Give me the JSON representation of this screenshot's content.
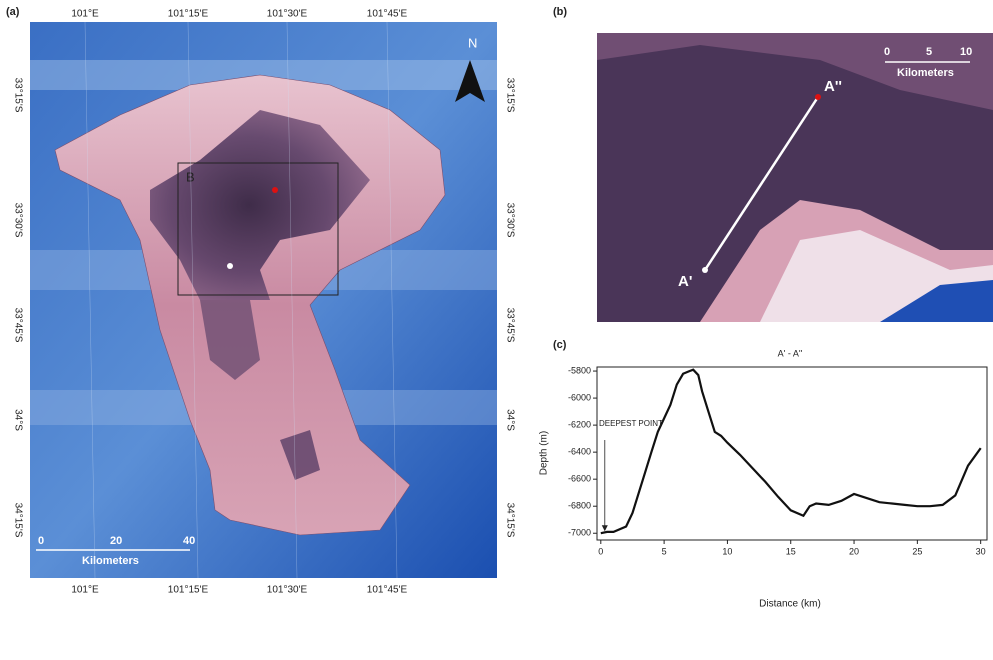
{
  "map_a": {
    "panel_label": "(a)",
    "lon_labels": [
      "101°E",
      "101°15'E",
      "101°30'E",
      "101°45'E"
    ],
    "lat_labels": [
      "33°15'S",
      "33°30'S",
      "33°45'S",
      "34°S",
      "34°15'S"
    ],
    "box_label": "B",
    "north": "N",
    "scale": [
      "0",
      "20",
      "40"
    ],
    "scale_unit": "Kilometers"
  },
  "map_b": {
    "panel_label": "(b)",
    "scale": [
      "0",
      "5",
      "10"
    ],
    "scale_unit": "Kilometers",
    "start": "A'",
    "end": "A''"
  },
  "chart_data": {
    "type": "line",
    "panel_label": "(c)",
    "title": "A' - A''",
    "x_label": "Distance (km)",
    "y_label": "Depth (m)",
    "annotation": "DEEPEST POINT",
    "x": [
      0,
      0.5,
      1,
      2,
      2.5,
      3,
      3.5,
      4,
      4.5,
      5,
      5.5,
      6,
      6.5,
      7,
      7.3,
      7.7,
      8,
      8.5,
      9,
      9.5,
      10,
      11,
      12,
      13,
      14,
      15,
      16,
      16.5,
      17,
      18,
      19,
      20,
      21,
      22,
      23,
      24,
      25,
      26,
      27,
      28,
      29,
      30
    ],
    "values": [
      -7000,
      -6990,
      -6990,
      -6950,
      -6850,
      -6700,
      -6550,
      -6400,
      -6250,
      -6150,
      -6050,
      -5900,
      -5820,
      -5800,
      -5790,
      -5830,
      -5950,
      -6100,
      -6250,
      -6280,
      -6330,
      -6420,
      -6520,
      -6620,
      -6730,
      -6830,
      -6870,
      -6800,
      -6780,
      -6790,
      -6760,
      -6710,
      -6740,
      -6770,
      -6780,
      -6790,
      -6800,
      -6800,
      -6790,
      -6720,
      -6500,
      -6370
    ],
    "color": "#111111",
    "xlim": [
      -0.3,
      30.5
    ],
    "ylim": [
      -7050,
      -5770
    ],
    "xticks": [
      0,
      5,
      10,
      15,
      20,
      25,
      30
    ],
    "yticks": [
      -5800,
      -6000,
      -6200,
      -6400,
      -6600,
      -6800,
      -7000
    ]
  }
}
